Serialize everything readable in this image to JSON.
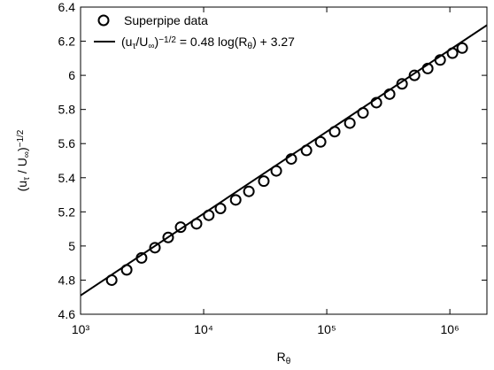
{
  "chart_data": {
    "type": "scatter+line",
    "xlabel": [
      {
        "text": "R"
      },
      {
        "text": "θ",
        "shift": "sub"
      }
    ],
    "ylabel": [
      {
        "text": "(u"
      },
      {
        "text": "τ",
        "shift": "sub"
      },
      {
        "text": " / U"
      },
      {
        "text": "∞",
        "shift": "sub"
      },
      {
        "text": ")"
      },
      {
        "text": "−1/2",
        "shift": "sup"
      }
    ],
    "xscale": "log",
    "xlim": [
      1000,
      2000000
    ],
    "ylim": [
      4.6,
      6.4
    ],
    "xticks": [
      {
        "value": 1000,
        "label": "10³"
      },
      {
        "value": 10000,
        "label": "10⁴"
      },
      {
        "value": 100000,
        "label": "10⁵"
      },
      {
        "value": 1000000,
        "label": "10⁶"
      }
    ],
    "yticks": [
      4.6,
      4.8,
      5,
      5.2,
      5.4,
      5.6,
      5.8,
      6,
      6.2,
      6.4
    ],
    "legend": "upper left",
    "series": [
      {
        "name": [
          {
            "text": "Superpipe data"
          }
        ],
        "kind": "scatter",
        "color": "#000000",
        "x": [
          1790,
          2370,
          3130,
          4020,
          5150,
          6500,
          8750,
          11000,
          13700,
          18200,
          23300,
          30800,
          38900,
          51500,
          68400,
          89100,
          116000,
          154000,
          197000,
          253000,
          324000,
          409000,
          516000,
          661000,
          834000,
          1050000,
          1260000
        ],
        "values": [
          4.8,
          4.86,
          4.93,
          4.99,
          5.05,
          5.11,
          5.13,
          5.18,
          5.22,
          5.27,
          5.32,
          5.38,
          5.44,
          5.51,
          5.56,
          5.61,
          5.67,
          5.72,
          5.78,
          5.84,
          5.89,
          5.95,
          6.0,
          6.04,
          6.09,
          6.13,
          6.16
        ]
      },
      {
        "name": [
          {
            "text": "(u"
          },
          {
            "text": "τ",
            "shift": "sub"
          },
          {
            "text": "/U"
          },
          {
            "text": "∞",
            "shift": "sub"
          },
          {
            "text": ")"
          },
          {
            "text": "−1/2",
            "shift": "sup"
          },
          {
            "text": " = 0.48 log(R"
          },
          {
            "text": "θ",
            "shift": "sub"
          },
          {
            "text": ") + 3.27"
          }
        ],
        "kind": "line",
        "color": "#000000",
        "x": [
          1000,
          2000000
        ],
        "values": [
          4.71,
          6.294
        ]
      }
    ]
  }
}
